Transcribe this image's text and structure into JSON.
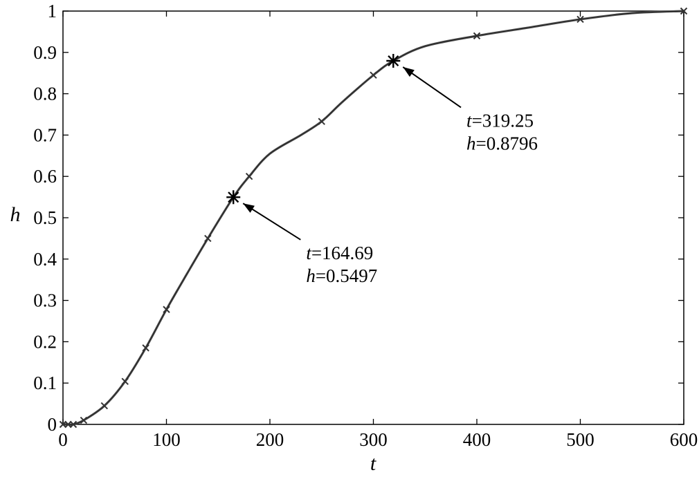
{
  "chart_data": {
    "type": "line",
    "title": "",
    "xlabel": "t",
    "ylabel": "h",
    "xlim": [
      0,
      600
    ],
    "ylim": [
      0,
      1
    ],
    "grid": false,
    "x_ticks": [
      "0",
      "100",
      "200",
      "300",
      "400",
      "500",
      "600"
    ],
    "y_ticks": [
      "0",
      "0.1",
      "0.2",
      "0.3",
      "0.4",
      "0.5",
      "0.6",
      "0.7",
      "0.8",
      "0.9",
      "1"
    ],
    "series": [
      {
        "x": [
          0,
          5,
          10,
          20,
          40,
          60,
          80,
          100,
          120,
          140,
          164.69,
          180,
          200,
          230,
          250,
          270,
          300,
          319.25,
          350,
          400,
          450,
          500,
          550,
          600
        ],
        "y": [
          0,
          0,
          0,
          0.01,
          0.045,
          0.104,
          0.185,
          0.278,
          0.365,
          0.45,
          0.5497,
          0.6,
          0.655,
          0.7,
          0.733,
          0.78,
          0.845,
          0.8796,
          0.915,
          0.94,
          0.96,
          0.98,
          0.995,
          1.0
        ],
        "markers": [
          {
            "x": 0,
            "y": 0
          },
          {
            "x": 5,
            "y": 0
          },
          {
            "x": 10,
            "y": 0
          },
          {
            "x": 20,
            "y": 0.01
          },
          {
            "x": 40,
            "y": 0.045
          },
          {
            "x": 60,
            "y": 0.104
          },
          {
            "x": 80,
            "y": 0.185
          },
          {
            "x": 100,
            "y": 0.278
          },
          {
            "x": 140,
            "y": 0.45
          },
          {
            "x": 180,
            "y": 0.6
          },
          {
            "x": 250,
            "y": 0.733
          },
          {
            "x": 300,
            "y": 0.845
          },
          {
            "x": 400,
            "y": 0.94
          },
          {
            "x": 500,
            "y": 0.98
          },
          {
            "x": 600,
            "y": 1.0
          }
        ]
      }
    ],
    "annotations": [
      {
        "point": {
          "x": 164.69,
          "y": 0.5497
        },
        "text_anchor": {
          "x": 235,
          "y": 0.4
        },
        "line1_var": "t",
        "line1_val": "=164.69",
        "line2_var": "h",
        "line2_val": "=0.5497"
      },
      {
        "point": {
          "x": 319.25,
          "y": 0.8796
        },
        "text_anchor": {
          "x": 390,
          "y": 0.72
        },
        "line1_var": "t",
        "line1_val": "=319.25",
        "line2_var": "h",
        "line2_val": "=0.8796"
      }
    ]
  }
}
